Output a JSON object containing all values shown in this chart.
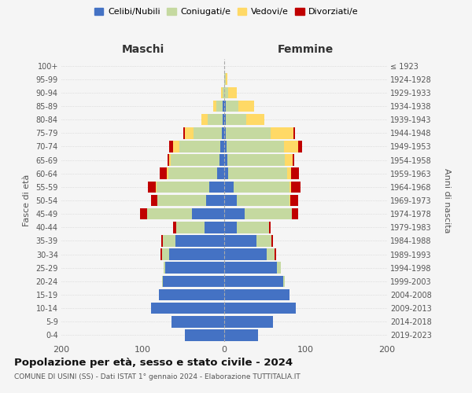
{
  "age_groups": [
    "0-4",
    "5-9",
    "10-14",
    "15-19",
    "20-24",
    "25-29",
    "30-34",
    "35-39",
    "40-44",
    "45-49",
    "50-54",
    "55-59",
    "60-64",
    "65-69",
    "70-74",
    "75-79",
    "80-84",
    "85-89",
    "90-94",
    "95-99",
    "100+"
  ],
  "birth_years": [
    "2019-2023",
    "2014-2018",
    "2009-2013",
    "2004-2008",
    "1999-2003",
    "1994-1998",
    "1989-1993",
    "1984-1988",
    "1979-1983",
    "1974-1978",
    "1969-1973",
    "1964-1968",
    "1959-1963",
    "1954-1958",
    "1949-1953",
    "1944-1948",
    "1939-1943",
    "1934-1938",
    "1929-1933",
    "1924-1928",
    "≤ 1923"
  ],
  "males": {
    "celibi": [
      48,
      65,
      90,
      80,
      75,
      72,
      68,
      60,
      24,
      40,
      22,
      18,
      9,
      6,
      5,
      3,
      2,
      2,
      0,
      0,
      0
    ],
    "coniugati": [
      0,
      0,
      0,
      0,
      1,
      2,
      8,
      15,
      35,
      55,
      60,
      65,
      60,
      60,
      50,
      35,
      18,
      8,
      2,
      0,
      0
    ],
    "vedovi": [
      0,
      0,
      0,
      0,
      0,
      0,
      0,
      0,
      0,
      0,
      0,
      1,
      2,
      2,
      8,
      10,
      8,
      4,
      2,
      0,
      0
    ],
    "divorziati": [
      0,
      0,
      0,
      0,
      0,
      0,
      2,
      2,
      4,
      8,
      8,
      10,
      8,
      2,
      5,
      2,
      0,
      0,
      0,
      0,
      0
    ]
  },
  "females": {
    "nubili": [
      42,
      60,
      88,
      80,
      72,
      65,
      52,
      40,
      15,
      25,
      15,
      12,
      5,
      4,
      3,
      2,
      2,
      2,
      0,
      0,
      0
    ],
    "coniugate": [
      0,
      0,
      0,
      0,
      2,
      5,
      10,
      18,
      40,
      58,
      65,
      68,
      72,
      70,
      70,
      55,
      25,
      15,
      5,
      2,
      0
    ],
    "vedove": [
      0,
      0,
      0,
      0,
      0,
      0,
      0,
      0,
      0,
      0,
      1,
      2,
      5,
      10,
      18,
      28,
      22,
      20,
      10,
      2,
      0
    ],
    "divorziate": [
      0,
      0,
      0,
      0,
      0,
      0,
      2,
      2,
      2,
      8,
      10,
      12,
      10,
      2,
      5,
      2,
      0,
      0,
      0,
      0,
      0
    ]
  },
  "colors": {
    "celibi": "#4472c4",
    "coniugati": "#c5d9a0",
    "vedovi": "#ffd966",
    "divorziati": "#c00000"
  },
  "xlim": 200,
  "title": "Popolazione per età, sesso e stato civile - 2024",
  "subtitle": "COMUNE DI USINI (SS) - Dati ISTAT 1° gennaio 2024 - Elaborazione TUTTITALIA.IT",
  "ylabel": "Fasce di età",
  "ylabel2": "Anni di nascita",
  "legend_labels": [
    "Celibi/Nubili",
    "Coniugati/e",
    "Vedovi/e",
    "Divorziati/e"
  ],
  "maschi_label": "Maschi",
  "femmine_label": "Femmine",
  "bg_color": "#f5f5f5"
}
